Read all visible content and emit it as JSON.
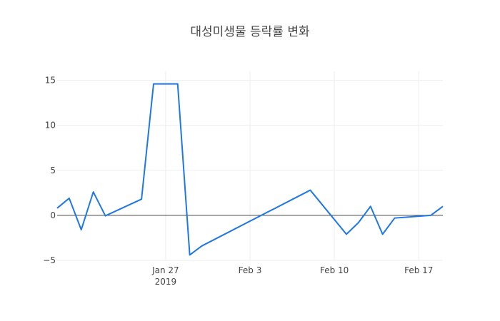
{
  "chart_data": {
    "type": "line",
    "title": "대성미생물 등락률 변화",
    "xlabel": "",
    "ylabel": "",
    "x_axis_type": "date",
    "xlim": [
      "2019-01-18",
      "2019-02-19"
    ],
    "ylim": [
      -5,
      16
    ],
    "x_ticks": [
      {
        "value": "2019-01-27",
        "label": "Jan 27",
        "sublabel": "2019"
      },
      {
        "value": "2019-02-03",
        "label": "Feb 3",
        "sublabel": ""
      },
      {
        "value": "2019-02-10",
        "label": "Feb 10",
        "sublabel": ""
      },
      {
        "value": "2019-02-17",
        "label": "Feb 17",
        "sublabel": ""
      }
    ],
    "y_ticks": [
      {
        "value": -5,
        "label": "−5"
      },
      {
        "value": 0,
        "label": "0"
      },
      {
        "value": 5,
        "label": "5"
      },
      {
        "value": 10,
        "label": "10"
      },
      {
        "value": 15,
        "label": "15"
      }
    ],
    "grid": true,
    "series": [
      {
        "color": "#1f77e4",
        "x": [
          "2019-01-18",
          "2019-01-19",
          "2019-01-20",
          "2019-01-21",
          "2019-01-22",
          "2019-01-25",
          "2019-01-26",
          "2019-01-27",
          "2019-01-28",
          "2019-01-29",
          "2019-01-30",
          "2019-02-08",
          "2019-02-11",
          "2019-02-12",
          "2019-02-13",
          "2019-02-14",
          "2019-02-15",
          "2019-02-18",
          "2019-02-19"
        ],
        "y": [
          0.8,
          1.9,
          -1.6,
          2.6,
          -0.05,
          1.8,
          14.6,
          14.6,
          14.6,
          -4.4,
          -3.4,
          2.8,
          -2.1,
          -0.8,
          1.0,
          -2.1,
          -0.3,
          0.0,
          1.0
        ]
      }
    ]
  }
}
